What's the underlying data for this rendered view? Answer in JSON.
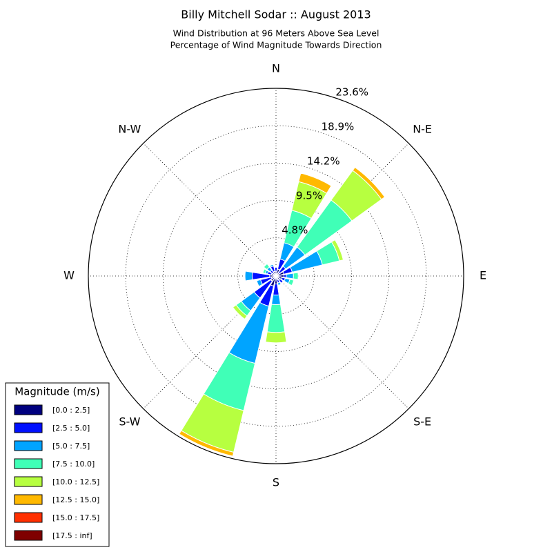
{
  "chart_data": {
    "type": "windrose",
    "title": "Billy Mitchell Sodar :: August 2013",
    "subtitle": [
      "Wind Distribution at 96 Meters Above Sea Level",
      "Percentage of Wind Magnitude Towards Direction"
    ],
    "direction_labels": [
      "N",
      "N-E",
      "E",
      "S-E",
      "S",
      "S-W",
      "W",
      "N-W"
    ],
    "rlim": [
      0,
      23.6
    ],
    "rticks": [
      {
        "value": 4.8,
        "label": "4.8%"
      },
      {
        "value": 9.5,
        "label": "9.5%"
      },
      {
        "value": 14.2,
        "label": "14.2%"
      },
      {
        "value": 18.9,
        "label": "18.9%"
      },
      {
        "value": 23.6,
        "label": "23.6%"
      }
    ],
    "grid": true,
    "legend": {
      "title": "Magnitude (m/s)",
      "position": "lower left"
    },
    "series": [
      {
        "name": "[0.0 : 2.5]",
        "color": "#00007f",
        "values": [
          0.6,
          0.9,
          0.5,
          1.0,
          1.0,
          0.8,
          0.6,
          0.5,
          1.0,
          1.3,
          0.8,
          0.6,
          0.8,
          0.6,
          0.5,
          0.6
        ]
      },
      {
        "name": "[2.5 : 5.0]",
        "color": "#0010ff",
        "values": [
          0.5,
          1.3,
          1.0,
          1.1,
          0.3,
          0.4,
          0.5,
          0.4,
          1.4,
          2.6,
          2.6,
          1.4,
          2.2,
          0.5,
          0.4,
          0.7
        ]
      },
      {
        "name": "[5.0 : 7.5]",
        "color": "#00a4ff",
        "values": [
          0,
          2.1,
          3.0,
          3.9,
          0.9,
          0.6,
          0,
          0.3,
          1.2,
          7.4,
          2.0,
          0.5,
          0.9,
          0.3,
          0.5,
          0.2
        ]
      },
      {
        "name": "[7.5 : 10.0]",
        "color": "#40ffb7",
        "values": [
          0,
          4.2,
          7.3,
          2.2,
          0.6,
          0.5,
          0,
          0,
          3.5,
          6.1,
          0.8,
          0,
          0,
          0.3,
          0.5,
          0
        ]
      },
      {
        "name": "[10.0 : 12.5]",
        "color": "#b7ff40",
        "values": [
          0,
          3.7,
          4.6,
          0.5,
          0,
          0,
          0,
          0,
          1.3,
          5.4,
          0.5,
          0,
          0,
          0,
          0,
          0
        ]
      },
      {
        "name": "[12.5 : 15.0]",
        "color": "#ffb900",
        "values": [
          0,
          1.1,
          0.5,
          0,
          0,
          0,
          0,
          0,
          0,
          0.5,
          0,
          0,
          0,
          0,
          0,
          0
        ]
      },
      {
        "name": "[15.0 : 17.5]",
        "color": "#ff3000",
        "values": [
          0,
          0,
          0,
          0,
          0,
          0,
          0,
          0,
          0,
          0,
          0,
          0,
          0,
          0,
          0,
          0
        ]
      },
      {
        "name": "[17.5 : inf]",
        "color": "#7f0000",
        "values": [
          0,
          0,
          0,
          0,
          0,
          0,
          0,
          0,
          0,
          0,
          0,
          0,
          0,
          0,
          0,
          0
        ]
      }
    ]
  }
}
